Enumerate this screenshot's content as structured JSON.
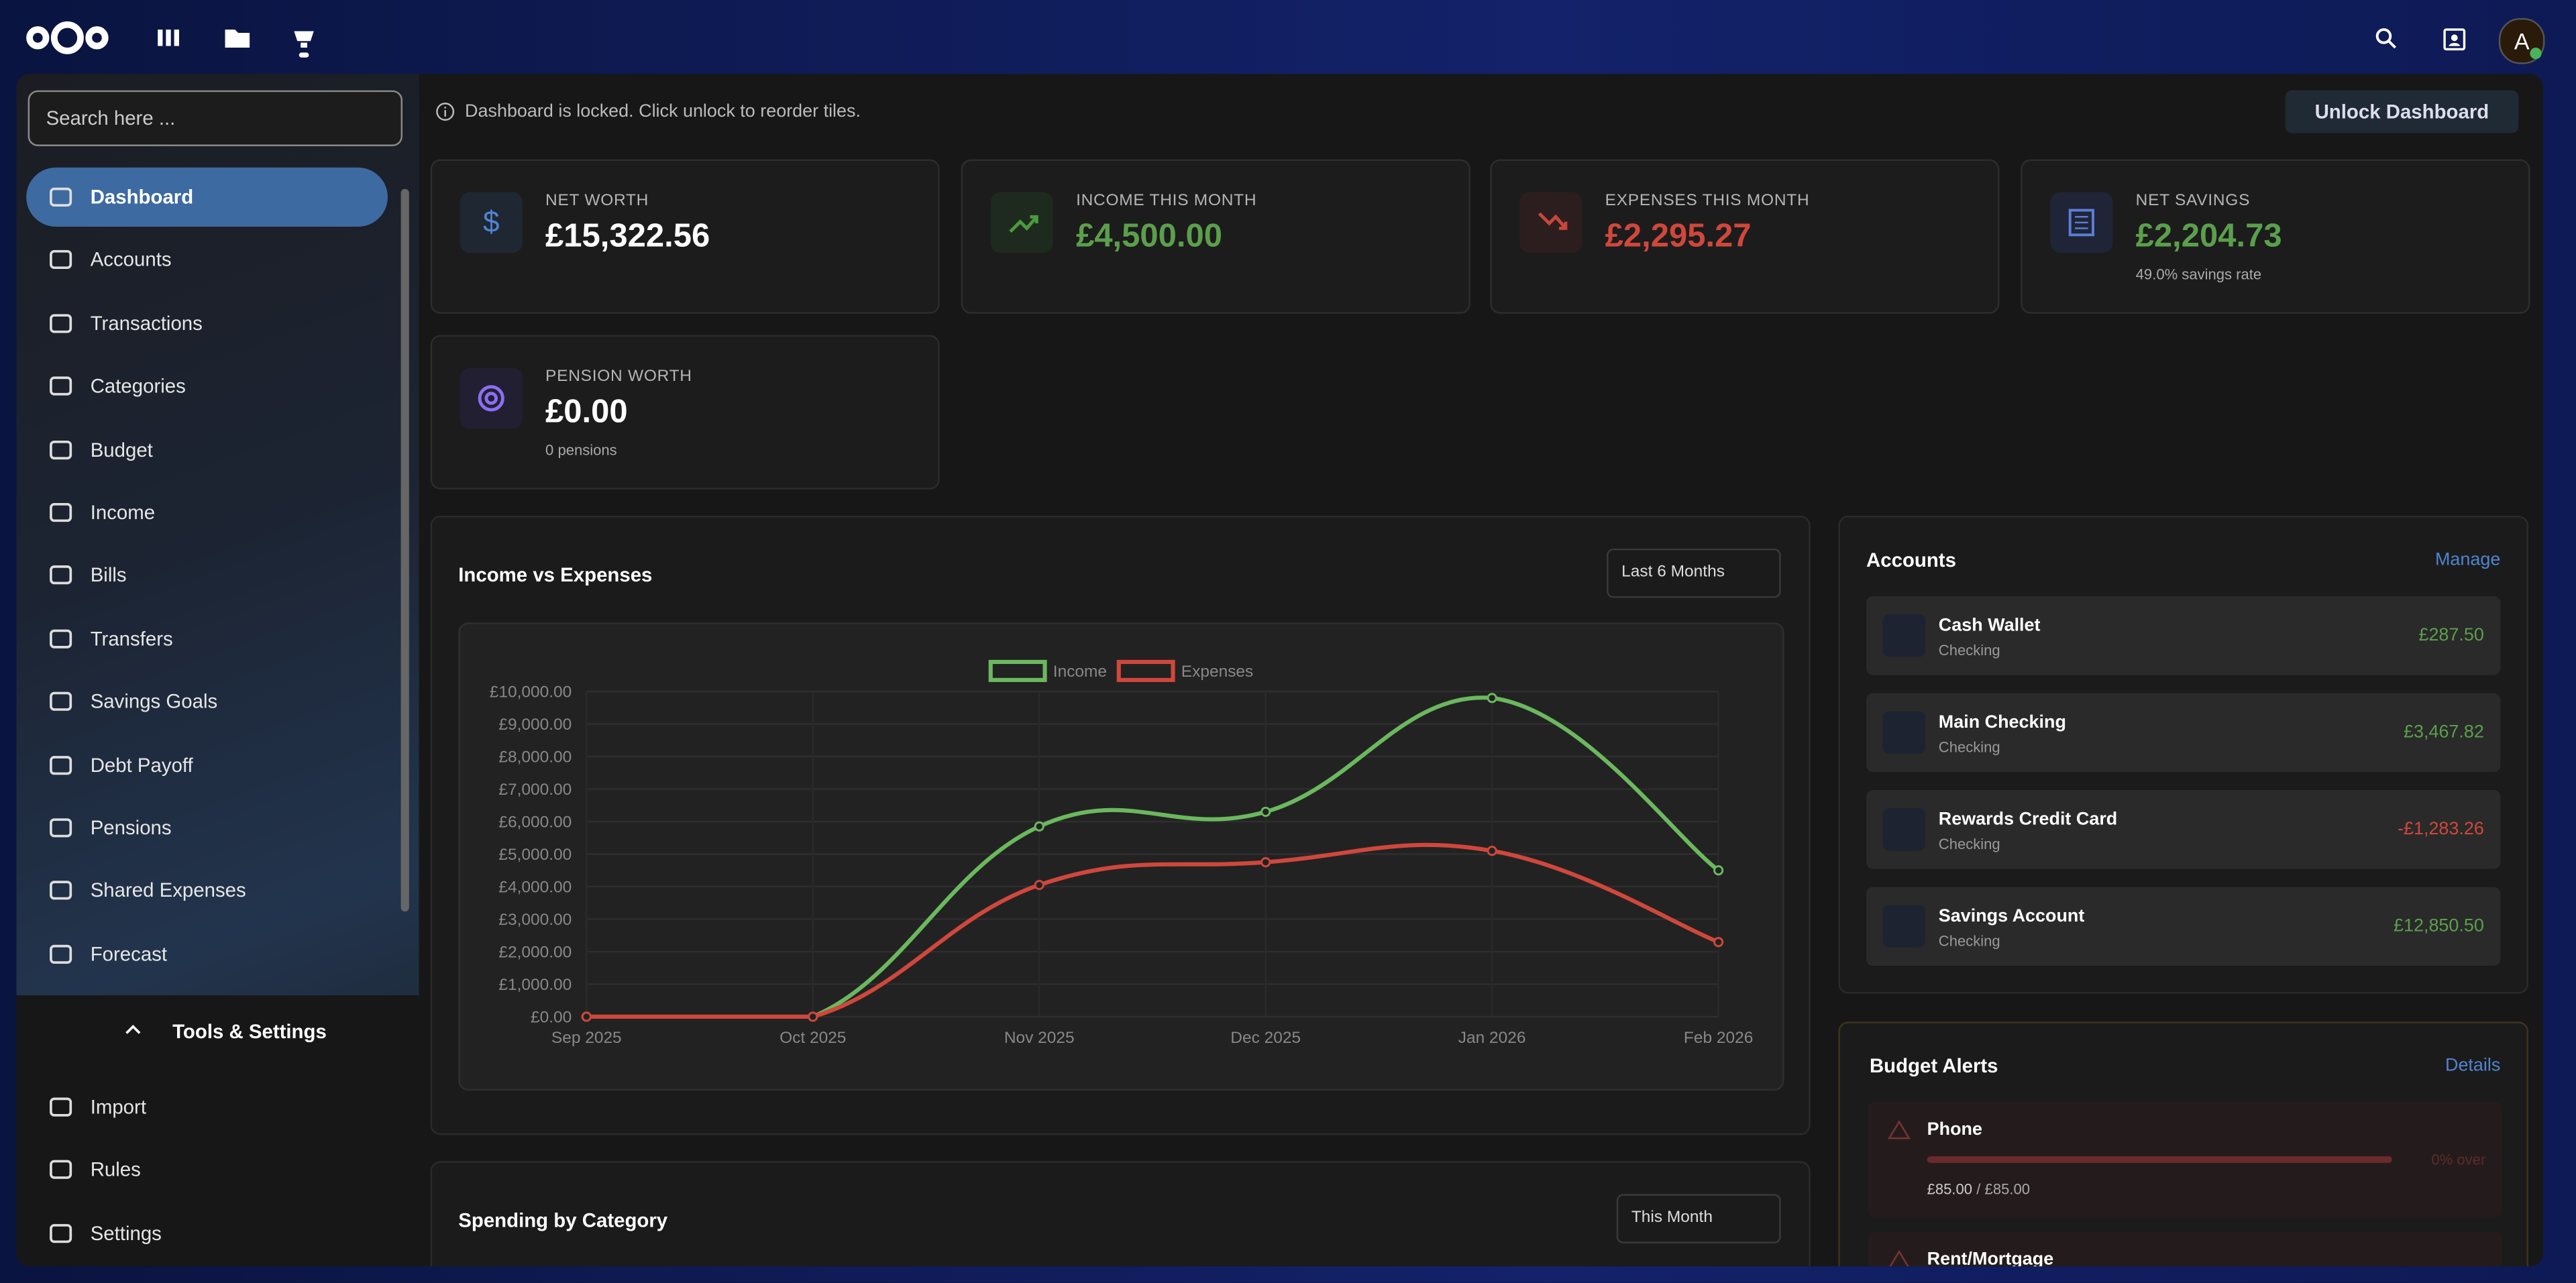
{
  "sidebar": {
    "search_placeholder": "Search here ...",
    "nav": [
      "Dashboard",
      "Accounts",
      "Transactions",
      "Categories",
      "Budget",
      "Income",
      "Bills",
      "Transfers",
      "Savings Goals",
      "Debt Payoff",
      "Pensions",
      "Shared Expenses",
      "Forecast"
    ],
    "tools_title": "Tools & Settings",
    "tools": [
      "Import",
      "Rules",
      "Settings"
    ]
  },
  "topbar": {
    "avatar": "A"
  },
  "notice": "Dashboard is locked. Click unlock to reorder tiles.",
  "unlock_button": "Unlock Dashboard",
  "cards": [
    {
      "label": "NET WORTH",
      "value": "£15,322.56"
    },
    {
      "label": "INCOME THIS MONTH",
      "value": "£4,500.00"
    },
    {
      "label": "EXPENSES THIS MONTH",
      "value": "£2,295.27"
    },
    {
      "label": "NET SAVINGS",
      "value": "£2,204.73",
      "note": "49.0% savings rate"
    },
    {
      "label": "PENSION WORTH",
      "value": "£0.00",
      "note": "0 pensions"
    }
  ],
  "income_chart": {
    "type": "line",
    "title": "Income vs Expenses",
    "period": "Last 6 Months",
    "categories": [
      "Sep 2025",
      "Oct 2025",
      "Nov 2025",
      "Dec 2025",
      "Jan 2026",
      "Feb 2026"
    ],
    "series": [
      {
        "name": "Income",
        "color": "#6bb85e",
        "values": [
          0,
          0,
          5850,
          6300,
          9800,
          4500
        ]
      },
      {
        "name": "Expenses",
        "color": "#d0473c",
        "values": [
          0,
          0,
          4050,
          4750,
          5100,
          2295.27
        ]
      }
    ],
    "ylim": [
      0,
      10000
    ],
    "yticks": [
      {
        "value": 0,
        "label": "£0.00"
      },
      {
        "value": 1000,
        "label": "£1,000.00"
      },
      {
        "value": 2000,
        "label": "£2,000.00"
      },
      {
        "value": 3000,
        "label": "£3,000.00"
      },
      {
        "value": 4000,
        "label": "£4,000.00"
      },
      {
        "value": 5000,
        "label": "£5,000.00"
      },
      {
        "value": 6000,
        "label": "£6,000.00"
      },
      {
        "value": 7000,
        "label": "£7,000.00"
      },
      {
        "value": 8000,
        "label": "£8,000.00"
      },
      {
        "value": 9000,
        "label": "£9,000.00"
      },
      {
        "value": 10000,
        "label": "£10,000.00"
      }
    ],
    "grid": true,
    "legend": "top"
  },
  "accounts": {
    "title": "Accounts",
    "link": "Manage",
    "items": [
      {
        "name": "Cash Wallet",
        "type": "Checking",
        "balance": "£287.50"
      },
      {
        "name": "Main Checking",
        "type": "Checking",
        "balance": "£3,467.82"
      },
      {
        "name": "Rewards Credit Card",
        "type": "Checking",
        "balance": "-£1,283.26"
      },
      {
        "name": "Savings Account",
        "type": "Checking",
        "balance": "£12,850.50"
      }
    ]
  },
  "budget_alerts": {
    "title": "Budget Alerts",
    "link": "Details",
    "items": [
      {
        "name": "Phone",
        "status": "0% over",
        "spent": "£85.00",
        "separator": "/",
        "budget": "£85.00"
      },
      {
        "name": "Rent/Mortgage"
      }
    ]
  },
  "spending": {
    "title": "Spending by Category",
    "period": "This Month"
  }
}
